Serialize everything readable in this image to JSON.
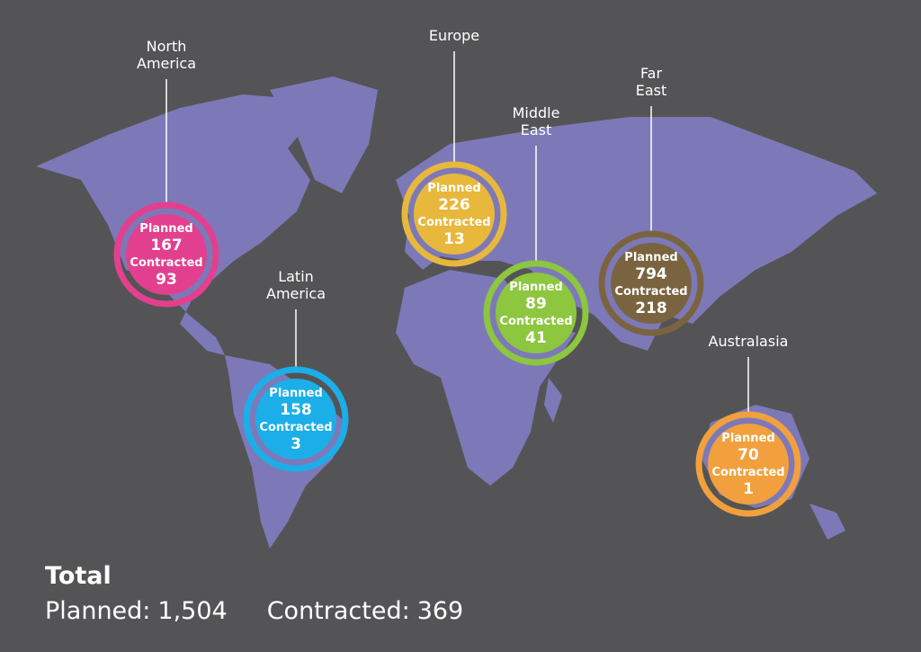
{
  "regions": [
    {
      "name": "North America",
      "planned": 167,
      "contracted": 93,
      "color": "#e2408f"
    },
    {
      "name": "Europe",
      "planned": 226,
      "contracted": 13,
      "color": "#e8b83c"
    },
    {
      "name": "Middle East",
      "planned": 89,
      "contracted": 41,
      "color": "#8dc63f"
    },
    {
      "name": "Far East",
      "planned": 794,
      "contracted": 218,
      "color": "#7a6440"
    },
    {
      "name": "Latin America",
      "planned": 158,
      "contracted": 3,
      "color": "#1caee8"
    },
    {
      "name": "Australasia",
      "planned": 70,
      "contracted": 1,
      "color": "#f2a03e"
    }
  ],
  "labels": {
    "planned": "Planned",
    "contracted": "Contracted"
  },
  "total": {
    "title": "Total",
    "planned_label": "Planned:",
    "planned": {
      "value": 1504,
      "label": "1,504"
    },
    "contracted_label": "Contracted:",
    "contracted": 369
  }
}
